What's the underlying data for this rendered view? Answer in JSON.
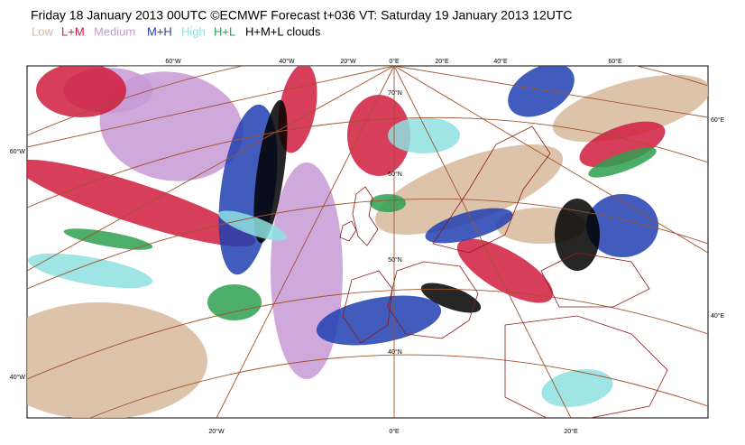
{
  "header": {
    "title": "Friday 18 January 2013 00UTC ©ECMWF Forecast t+036 VT: Saturday 19 January 2013 12UTC"
  },
  "legend": {
    "items": [
      {
        "label": "Low",
        "color": "#d8b89c"
      },
      {
        "label": "L+M",
        "color": "#d01c3c"
      },
      {
        "label": "Medium",
        "color": "#c79ad6"
      },
      {
        "label": "M+H",
        "color": "#2040b0"
      },
      {
        "label": "High",
        "color": "#8ee0e0"
      },
      {
        "label": "H+L",
        "color": "#2ea050"
      },
      {
        "label": "H+M+L clouds",
        "color": "#000000"
      }
    ]
  },
  "map": {
    "top_labels": [
      "60°W",
      "40°W",
      "20°W",
      "0°E",
      "20°E",
      "40°E",
      "60°E"
    ],
    "left_labels": [
      "60°W",
      "40°W"
    ],
    "right_labels": [
      "60°E",
      "40°E"
    ],
    "bottom_labels": [
      "20°W",
      "0°E",
      "20°E"
    ],
    "lat_labels": [
      "70°N",
      "60°N",
      "50°N",
      "40°N"
    ]
  }
}
